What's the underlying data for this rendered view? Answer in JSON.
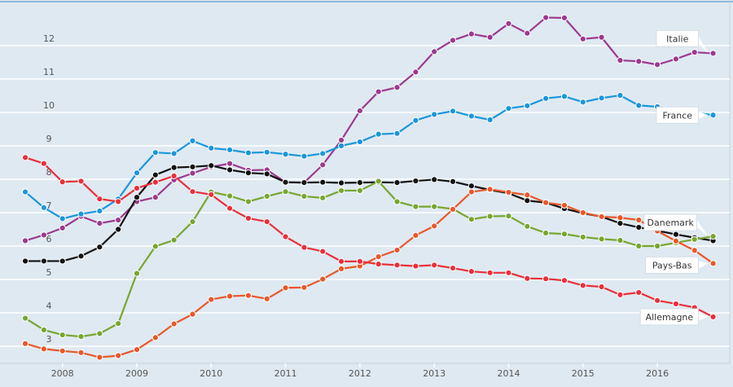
{
  "chart_data": {
    "type": "line",
    "title": "",
    "xlabel": "",
    "ylabel": "",
    "xlim": [
      2007.5,
      2016.75
    ],
    "ylim": [
      2.5,
      13
    ],
    "grid": true,
    "x_ticks": [
      "2008",
      "2009",
      "2010",
      "2011",
      "2012",
      "2013",
      "2014",
      "2015",
      "2016"
    ],
    "y_ticks": [
      "3",
      "4",
      "5",
      "6",
      "7",
      "8",
      "9",
      "10",
      "11",
      "12"
    ],
    "x_start": 2007.5,
    "x_step": 0.25,
    "series": [
      {
        "name": "Italie",
        "color": "#9b3a8e",
        "values": [
          6.16,
          6.33,
          6.54,
          6.89,
          6.68,
          6.78,
          7.33,
          7.46,
          7.98,
          8.18,
          8.37,
          8.47,
          8.27,
          8.28,
          7.91,
          7.9,
          8.43,
          9.17,
          10.05,
          10.62,
          10.75,
          11.21,
          11.82,
          12.16,
          12.35,
          12.25,
          12.66,
          12.37,
          12.84,
          12.83,
          12.2,
          12.25,
          11.56,
          11.53,
          11.43,
          11.6,
          11.8,
          11.77
        ]
      },
      {
        "name": "France",
        "color": "#1b96dc",
        "values": [
          7.62,
          7.15,
          6.82,
          6.96,
          7.05,
          7.41,
          8.19,
          8.8,
          8.77,
          9.15,
          8.93,
          8.88,
          8.79,
          8.81,
          8.75,
          8.69,
          8.77,
          9.0,
          9.12,
          9.35,
          9.37,
          9.76,
          9.94,
          10.04,
          9.89,
          9.78,
          10.12,
          10.2,
          10.42,
          10.48,
          10.31,
          10.43,
          10.51,
          10.21,
          10.17,
          10.08,
          10.0,
          9.92
        ]
      },
      {
        "name": "",
        "color": "#111111",
        "values": [
          5.55,
          5.55,
          5.55,
          5.7,
          5.97,
          6.5,
          7.46,
          8.13,
          8.35,
          8.37,
          8.41,
          8.28,
          8.19,
          8.16,
          7.91,
          7.9,
          7.91,
          7.89,
          7.9,
          7.91,
          7.9,
          7.95,
          7.99,
          7.93,
          7.8,
          7.68,
          7.58,
          7.36,
          7.3,
          7.12,
          6.98,
          6.88,
          6.68,
          6.56,
          6.46,
          6.35,
          6.25,
          6.16
        ]
      },
      {
        "name": "Danemark",
        "color": "#77a631",
        "values": [
          3.84,
          3.49,
          3.34,
          3.29,
          3.38,
          3.68,
          5.18,
          5.99,
          6.18,
          6.73,
          7.62,
          7.5,
          7.33,
          7.49,
          7.63,
          7.49,
          7.44,
          7.66,
          7.66,
          7.94,
          7.33,
          7.18,
          7.18,
          7.11,
          6.8,
          6.89,
          6.9,
          6.59,
          6.39,
          6.36,
          6.27,
          6.21,
          6.17,
          6.0,
          6.0,
          6.1,
          6.2,
          6.29
        ]
      },
      {
        "name": "Pays-Bas",
        "color": "#e8582a",
        "values": [
          3.08,
          2.92,
          2.86,
          2.81,
          2.67,
          2.72,
          2.9,
          3.26,
          3.67,
          3.96,
          4.4,
          4.5,
          4.52,
          4.42,
          4.75,
          4.76,
          5.01,
          5.32,
          5.4,
          5.68,
          5.88,
          6.32,
          6.6,
          7.1,
          7.62,
          7.7,
          7.61,
          7.53,
          7.3,
          7.22,
          7.0,
          6.88,
          6.85,
          6.78,
          6.45,
          6.15,
          5.87,
          5.48
        ]
      },
      {
        "name": "Allemagne",
        "color": "#e8303a",
        "values": [
          8.65,
          8.47,
          7.92,
          7.94,
          7.41,
          7.33,
          7.73,
          7.91,
          8.1,
          7.63,
          7.54,
          7.13,
          6.83,
          6.73,
          6.28,
          5.96,
          5.84,
          5.54,
          5.54,
          5.46,
          5.43,
          5.4,
          5.43,
          5.34,
          5.24,
          5.2,
          5.2,
          5.03,
          5.02,
          4.97,
          4.82,
          4.78,
          4.54,
          4.61,
          4.37,
          4.27,
          4.16,
          3.88
        ]
      }
    ],
    "legend": "inline labels at line ends"
  }
}
